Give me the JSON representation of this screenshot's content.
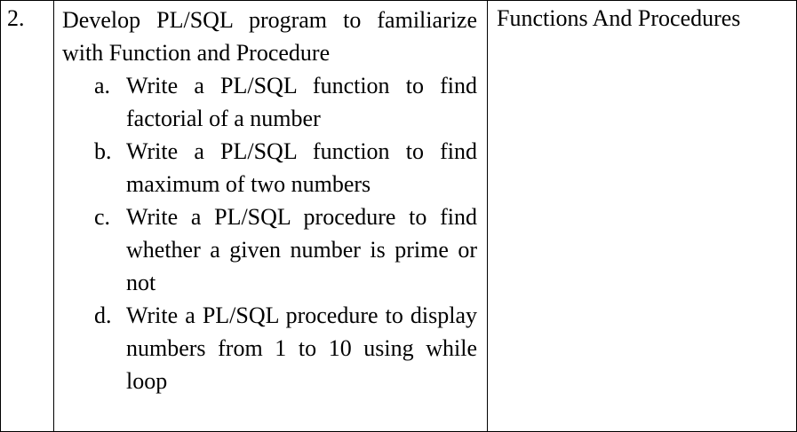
{
  "row": {
    "number": "2.",
    "intro": "Develop PL/SQL program to familiarize with Function and Procedure",
    "items": [
      {
        "marker": "a.",
        "text": "Write a PL/SQL function to find factorial of a number"
      },
      {
        "marker": "b.",
        "text": "Write a PL/SQL function to find maximum of two numbers"
      },
      {
        "marker": "c.",
        "text": "Write a PL/SQL procedure to find whether a given number is prime or not"
      },
      {
        "marker": "d.",
        "text": "Write a PL/SQL procedure to display numbers from 1 to 10 using while loop"
      }
    ],
    "topic": "Functions And Procedures"
  }
}
